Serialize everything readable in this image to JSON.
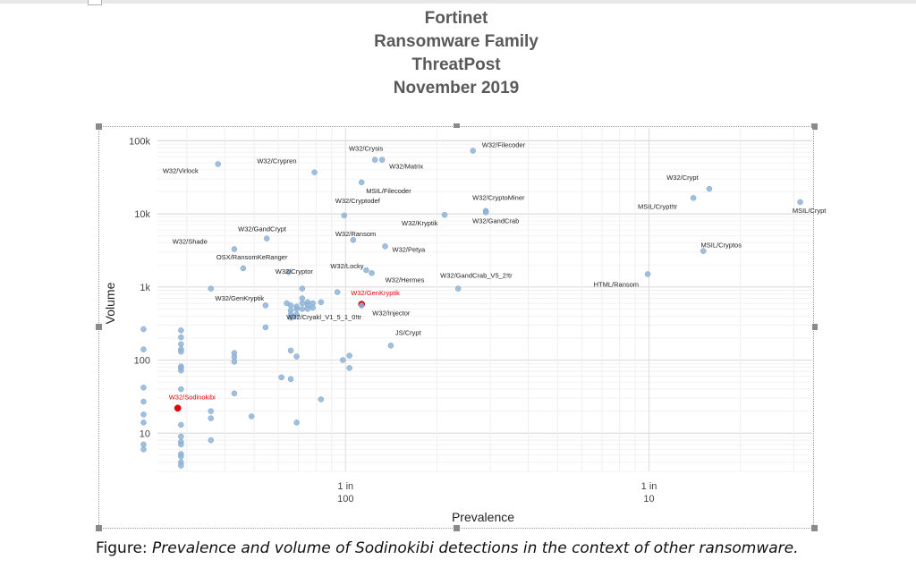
{
  "title_lines": [
    "Fortinet",
    "Ransomware Family",
    "ThreatPost",
    "November 2019"
  ],
  "caption": {
    "prefix": "Figure: ",
    "text": "Prevalence and volume of Sodinokibi detections in the context of other ransomware."
  },
  "colors": {
    "point": "#8fb4d9",
    "highlight": "#e8000b",
    "grid": "#e4e4e4",
    "panel": "#ffffff"
  },
  "chart_data": {
    "type": "scatter",
    "xlabel": "Prevalence",
    "ylabel": "Volume",
    "x_scale": "log",
    "y_scale": "log",
    "xlim": [
      0.0026,
      0.32
    ],
    "ylim": [
      3,
      160000
    ],
    "x_ticks": [
      {
        "value": 0.01,
        "label": [
          "1 in",
          "100"
        ]
      },
      {
        "value": 0.1,
        "label": [
          "1 in",
          "10"
        ]
      }
    ],
    "y_ticks": [
      {
        "value": 10,
        "label": "10"
      },
      {
        "value": 100,
        "label": "100"
      },
      {
        "value": 1000,
        "label": "1k"
      },
      {
        "value": 10000,
        "label": "10k"
      },
      {
        "value": 100000,
        "label": "100k"
      }
    ],
    "grid": true,
    "legend": "none",
    "labeled_points": [
      {
        "name": "W32/Filecoder",
        "x": 0.0263,
        "y": 73000
      },
      {
        "name": "W32/Crysis",
        "x": 0.0125,
        "y": 55000
      },
      {
        "name": "W32/Crypren",
        "x": 0.0079,
        "y": 37000
      },
      {
        "name": "W32/Virlock",
        "x": 0.0038,
        "y": 48000
      },
      {
        "name": "W32/Matrix",
        "x": 0.0132,
        "y": 55000
      },
      {
        "name": "MSIL/Filecoder",
        "x": 0.0113,
        "y": 27000
      },
      {
        "name": "W32/Cryptodef",
        "x": 0.0099,
        "y": 9500
      },
      {
        "name": "W32/CryptoMiner",
        "x": 0.029,
        "y": 11000
      },
      {
        "name": "W32/GandCrab",
        "x": 0.029,
        "y": 10500
      },
      {
        "name": "W32/Kryptik",
        "x": 0.0212,
        "y": 9700
      },
      {
        "name": "W32/GandCrypt",
        "x": 0.0055,
        "y": 4600
      },
      {
        "name": "W32/Shade",
        "x": 0.0043,
        "y": 3300
      },
      {
        "name": "W32/Ransom",
        "x": 0.0106,
        "y": 4400
      },
      {
        "name": "W32/Locky",
        "x": 0.0117,
        "y": 1700
      },
      {
        "name": "W32/Petya",
        "x": 0.0135,
        "y": 3600
      },
      {
        "name": "OSX/RansomKeRanger",
        "x": 0.0046,
        "y": 1800
      },
      {
        "name": "W32/Cryptor",
        "x": 0.0065,
        "y": 1600
      },
      {
        "name": "W32/Hermes",
        "x": 0.0122,
        "y": 1550
      },
      {
        "name": "W32/GandCrab_V5_2!tr",
        "x": 0.0235,
        "y": 950
      },
      {
        "name": "W32/GenKryptik",
        "x": 0.0064,
        "y": 600
      },
      {
        "name": "W32/GenKryptik",
        "x": 0.0113,
        "y": 580,
        "highlight": true
      },
      {
        "name": "W32/Injector",
        "x": 0.0113,
        "y": 560
      },
      {
        "name": "W32/Cryakl_V1_5_1_0!tr",
        "x": 0.0067,
        "y": 390
      },
      {
        "name": "JS/Crypt",
        "x": 0.0141,
        "y": 158
      },
      {
        "name": "W32/Sodinokibi",
        "x": 0.0028,
        "y": 22,
        "highlight": true
      },
      {
        "name": "W32/Crypt",
        "x": 0.158,
        "y": 22000
      },
      {
        "name": "MSIL/Crypt!tr",
        "x": 0.14,
        "y": 16500
      },
      {
        "name": "MSIL/Crypt",
        "x": 0.315,
        "y": 14500
      },
      {
        "name": "MSIL/Cryptos",
        "x": 0.151,
        "y": 3100
      },
      {
        "name": "HTML/Ransom",
        "x": 0.099,
        "y": 1500
      }
    ],
    "points": [
      {
        "x": 0.00216,
        "y": 265
      },
      {
        "x": 0.00216,
        "y": 140
      },
      {
        "x": 0.00216,
        "y": 42
      },
      {
        "x": 0.00216,
        "y": 27
      },
      {
        "x": 0.00216,
        "y": 18
      },
      {
        "x": 0.00216,
        "y": 14
      },
      {
        "x": 0.00216,
        "y": 7
      },
      {
        "x": 0.00216,
        "y": 6
      },
      {
        "x": 0.00287,
        "y": 255
      },
      {
        "x": 0.00287,
        "y": 205
      },
      {
        "x": 0.00287,
        "y": 165
      },
      {
        "x": 0.00287,
        "y": 140
      },
      {
        "x": 0.00287,
        "y": 130
      },
      {
        "x": 0.00287,
        "y": 82
      },
      {
        "x": 0.00287,
        "y": 78
      },
      {
        "x": 0.00287,
        "y": 72
      },
      {
        "x": 0.00287,
        "y": 40
      },
      {
        "x": 0.00287,
        "y": 13
      },
      {
        "x": 0.00287,
        "y": 9
      },
      {
        "x": 0.00287,
        "y": 7.6
      },
      {
        "x": 0.00287,
        "y": 7
      },
      {
        "x": 0.00287,
        "y": 5.2
      },
      {
        "x": 0.00287,
        "y": 4.8
      },
      {
        "x": 0.00287,
        "y": 4
      },
      {
        "x": 0.00287,
        "y": 3.6
      },
      {
        "x": 0.0036,
        "y": 950
      },
      {
        "x": 0.0036,
        "y": 20
      },
      {
        "x": 0.0036,
        "y": 16
      },
      {
        "x": 0.0036,
        "y": 8
      },
      {
        "x": 0.0043,
        "y": 125
      },
      {
        "x": 0.0043,
        "y": 110
      },
      {
        "x": 0.0043,
        "y": 95
      },
      {
        "x": 0.0043,
        "y": 35
      },
      {
        "x": 0.0049,
        "y": 17
      },
      {
        "x": 0.00545,
        "y": 560
      },
      {
        "x": 0.00545,
        "y": 280
      },
      {
        "x": 0.00615,
        "y": 58
      },
      {
        "x": 0.0066,
        "y": 135
      },
      {
        "x": 0.0066,
        "y": 55
      },
      {
        "x": 0.0069,
        "y": 112
      },
      {
        "x": 0.0066,
        "y": 560
      },
      {
        "x": 0.0066,
        "y": 480
      },
      {
        "x": 0.0066,
        "y": 420
      },
      {
        "x": 0.0066,
        "y": 380
      },
      {
        "x": 0.0069,
        "y": 420
      },
      {
        "x": 0.0069,
        "y": 500
      },
      {
        "x": 0.0069,
        "y": 540
      },
      {
        "x": 0.0069,
        "y": 14
      },
      {
        "x": 0.0072,
        "y": 950
      },
      {
        "x": 0.0072,
        "y": 700
      },
      {
        "x": 0.0072,
        "y": 600
      },
      {
        "x": 0.0072,
        "y": 500
      },
      {
        "x": 0.0075,
        "y": 620
      },
      {
        "x": 0.0075,
        "y": 560
      },
      {
        "x": 0.0075,
        "y": 500
      },
      {
        "x": 0.0078,
        "y": 600
      },
      {
        "x": 0.0078,
        "y": 520
      },
      {
        "x": 0.0083,
        "y": 620
      },
      {
        "x": 0.0083,
        "y": 29
      },
      {
        "x": 0.0098,
        "y": 100
      },
      {
        "x": 0.0103,
        "y": 115
      },
      {
        "x": 0.0103,
        "y": 78
      },
      {
        "x": 0.0094,
        "y": 850
      }
    ]
  }
}
